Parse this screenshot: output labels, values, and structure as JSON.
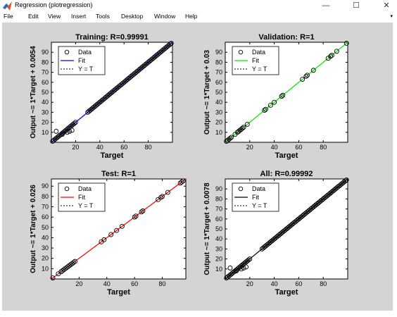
{
  "window": {
    "title": "Regression (plotregression)",
    "controls": {
      "minimize": "—",
      "maximize": "☐",
      "close": "✕"
    }
  },
  "menu": {
    "items": [
      "File",
      "Edit",
      "View",
      "Insert",
      "Tools",
      "Desktop",
      "Window",
      "Help"
    ],
    "overflow_arrow": "▾"
  },
  "chart_data": [
    {
      "type": "scatter",
      "title": "Training: R=0.99991",
      "xlabel": "Target",
      "ylabel": "Output ~= 1*Target + 0.0054",
      "xlim": [
        0,
        100
      ],
      "ylim": [
        0,
        100
      ],
      "xticks": [
        20,
        40,
        60,
        80
      ],
      "yticks": [
        10,
        20,
        30,
        40,
        50,
        60,
        70,
        80,
        90
      ],
      "fit_color": "#0000ff",
      "fit": {
        "slope": 1,
        "intercept": 0.0054
      },
      "legend": [
        "Data",
        "Fit",
        "Y = T"
      ],
      "legend_position": "top-left",
      "points": [
        [
          1,
          1
        ],
        [
          2,
          2
        ],
        [
          3,
          3
        ],
        [
          4,
          4
        ],
        [
          5,
          5
        ],
        [
          6,
          6
        ],
        [
          7,
          7
        ],
        [
          8,
          8
        ],
        [
          9,
          9
        ],
        [
          10,
          10
        ],
        [
          11,
          11
        ],
        [
          12,
          12
        ],
        [
          13,
          13
        ],
        [
          14,
          14
        ],
        [
          15,
          15
        ],
        [
          16,
          16
        ],
        [
          17,
          17
        ],
        [
          18,
          18
        ],
        [
          19,
          19
        ],
        [
          20,
          20
        ],
        [
          4,
          11
        ],
        [
          9,
          8
        ],
        [
          13,
          10
        ],
        [
          15,
          11
        ],
        [
          17,
          12
        ],
        [
          30,
          30
        ],
        [
          31,
          31
        ],
        [
          32,
          32
        ],
        [
          33,
          33
        ],
        [
          34,
          34
        ],
        [
          35,
          35
        ],
        [
          36,
          36
        ],
        [
          37,
          37
        ],
        [
          38,
          38
        ],
        [
          39,
          39
        ],
        [
          40,
          40
        ],
        [
          41,
          41
        ],
        [
          42,
          42
        ],
        [
          43,
          43
        ],
        [
          44,
          44
        ],
        [
          45,
          45
        ],
        [
          46,
          46
        ],
        [
          47,
          47
        ],
        [
          48,
          48
        ],
        [
          49,
          49
        ],
        [
          50,
          50
        ],
        [
          51,
          51
        ],
        [
          52,
          52
        ],
        [
          53,
          53
        ],
        [
          54,
          54
        ],
        [
          55,
          55
        ],
        [
          56,
          56
        ],
        [
          57,
          57
        ],
        [
          58,
          58
        ],
        [
          59,
          59
        ],
        [
          60,
          60
        ],
        [
          61,
          61
        ],
        [
          62,
          62
        ],
        [
          63,
          63
        ],
        [
          64,
          64
        ],
        [
          65,
          65
        ],
        [
          66,
          66
        ],
        [
          67,
          67
        ],
        [
          68,
          68
        ],
        [
          69,
          69
        ],
        [
          70,
          70
        ],
        [
          71,
          71
        ],
        [
          72,
          72
        ],
        [
          73,
          73
        ],
        [
          74,
          74
        ],
        [
          75,
          75
        ],
        [
          76,
          76
        ],
        [
          77,
          77
        ],
        [
          78,
          78
        ],
        [
          79,
          79
        ],
        [
          80,
          80
        ],
        [
          81,
          81
        ],
        [
          82,
          82
        ],
        [
          83,
          83
        ],
        [
          84,
          84
        ],
        [
          85,
          85
        ],
        [
          86,
          86
        ],
        [
          87,
          87
        ],
        [
          88,
          88
        ],
        [
          89,
          89
        ],
        [
          90,
          90
        ],
        [
          91,
          91
        ],
        [
          92,
          92
        ],
        [
          93,
          93
        ],
        [
          94,
          94
        ],
        [
          95,
          95
        ],
        [
          96,
          96
        ],
        [
          97,
          97
        ],
        [
          98,
          98
        ],
        [
          99,
          99
        ]
      ]
    },
    {
      "type": "scatter",
      "title": "Validation: R=1",
      "xlabel": "Target",
      "ylabel": "Output ~= 1*Target + 0.03",
      "xlim": [
        0,
        100
      ],
      "ylim": [
        0,
        100
      ],
      "xticks": [
        20,
        40,
        60,
        80
      ],
      "yticks": [
        10,
        20,
        30,
        40,
        50,
        60,
        70,
        80,
        90
      ],
      "fit_color": "#00ee00",
      "fit": {
        "slope": 1,
        "intercept": 0.03
      },
      "legend": [
        "Data",
        "Fit",
        "Y = T"
      ],
      "legend_position": "top-left",
      "points": [
        [
          1,
          1
        ],
        [
          2,
          2
        ],
        [
          3,
          3
        ],
        [
          4,
          4
        ],
        [
          5,
          5
        ],
        [
          8,
          8
        ],
        [
          10,
          10
        ],
        [
          11,
          11
        ],
        [
          12,
          12
        ],
        [
          13,
          13
        ],
        [
          14,
          14
        ],
        [
          15,
          15
        ],
        [
          18,
          18
        ],
        [
          32,
          32
        ],
        [
          33,
          33
        ],
        [
          37,
          37
        ],
        [
          40,
          40
        ],
        [
          46,
          46
        ],
        [
          47,
          47
        ],
        [
          63,
          63
        ],
        [
          66,
          66
        ],
        [
          67,
          67
        ],
        [
          72,
          72
        ],
        [
          84,
          84
        ],
        [
          86,
          86
        ],
        [
          87,
          87
        ],
        [
          91,
          91
        ],
        [
          99,
          99
        ]
      ]
    },
    {
      "type": "scatter",
      "title": "Test: R=1",
      "xlabel": "Target",
      "ylabel": "Output ~= 1*Target + 0.026",
      "xlim": [
        0,
        97
      ],
      "ylim": [
        0,
        97
      ],
      "xticks": [
        20,
        40,
        60,
        80
      ],
      "yticks": [
        10,
        20,
        30,
        40,
        50,
        60,
        70,
        80,
        90
      ],
      "fit_color": "#ff0000",
      "fit": {
        "slope": 1,
        "intercept": 0.026
      },
      "legend": [
        "Data",
        "Fit",
        "Y = T"
      ],
      "legend_position": "top-left",
      "points": [
        [
          1,
          1
        ],
        [
          5,
          5
        ],
        [
          7,
          7
        ],
        [
          8,
          8
        ],
        [
          9,
          9
        ],
        [
          10,
          10
        ],
        [
          11,
          11
        ],
        [
          12,
          12
        ],
        [
          13,
          13
        ],
        [
          14,
          14
        ],
        [
          15,
          15
        ],
        [
          16,
          16
        ],
        [
          17,
          17
        ],
        [
          36,
          36
        ],
        [
          38,
          38
        ],
        [
          43,
          43
        ],
        [
          47,
          47
        ],
        [
          51,
          51
        ],
        [
          60,
          60
        ],
        [
          61,
          61
        ],
        [
          65,
          65
        ],
        [
          66,
          66
        ],
        [
          77,
          77
        ],
        [
          79,
          79
        ],
        [
          80,
          80
        ],
        [
          84,
          84
        ],
        [
          93,
          93
        ],
        [
          94,
          94
        ],
        [
          95,
          95
        ]
      ]
    },
    {
      "type": "scatter",
      "title": "All: R=0.99992",
      "xlabel": "Target",
      "ylabel": "Output ~= 1*Target + 0.0078",
      "xlim": [
        0,
        100
      ],
      "ylim": [
        0,
        100
      ],
      "xticks": [
        20,
        40,
        60,
        80
      ],
      "yticks": [
        10,
        20,
        30,
        40,
        50,
        60,
        70,
        80,
        90
      ],
      "fit_color": "#000000",
      "fit": {
        "slope": 1,
        "intercept": 0.0078
      },
      "legend": [
        "Data",
        "Fit",
        "Y = T"
      ],
      "legend_position": "top-left",
      "points": [
        [
          1,
          1
        ],
        [
          2,
          2
        ],
        [
          3,
          3
        ],
        [
          4,
          4
        ],
        [
          5,
          5
        ],
        [
          6,
          6
        ],
        [
          7,
          7
        ],
        [
          8,
          8
        ],
        [
          9,
          9
        ],
        [
          10,
          10
        ],
        [
          11,
          11
        ],
        [
          12,
          12
        ],
        [
          13,
          13
        ],
        [
          14,
          14
        ],
        [
          15,
          15
        ],
        [
          16,
          16
        ],
        [
          17,
          17
        ],
        [
          18,
          18
        ],
        [
          19,
          19
        ],
        [
          20,
          20
        ],
        [
          4,
          11
        ],
        [
          9,
          8
        ],
        [
          13,
          10
        ],
        [
          15,
          11
        ],
        [
          17,
          12
        ],
        [
          30,
          30
        ],
        [
          31,
          31
        ],
        [
          32,
          32
        ],
        [
          33,
          33
        ],
        [
          34,
          34
        ],
        [
          35,
          35
        ],
        [
          36,
          36
        ],
        [
          37,
          37
        ],
        [
          38,
          38
        ],
        [
          39,
          39
        ],
        [
          40,
          40
        ],
        [
          41,
          41
        ],
        [
          42,
          42
        ],
        [
          43,
          43
        ],
        [
          44,
          44
        ],
        [
          45,
          45
        ],
        [
          46,
          46
        ],
        [
          47,
          47
        ],
        [
          48,
          48
        ],
        [
          49,
          49
        ],
        [
          50,
          50
        ],
        [
          51,
          51
        ],
        [
          52,
          52
        ],
        [
          53,
          53
        ],
        [
          54,
          54
        ],
        [
          55,
          55
        ],
        [
          56,
          56
        ],
        [
          57,
          57
        ],
        [
          58,
          58
        ],
        [
          59,
          59
        ],
        [
          60,
          60
        ],
        [
          61,
          61
        ],
        [
          62,
          62
        ],
        [
          63,
          63
        ],
        [
          64,
          64
        ],
        [
          65,
          65
        ],
        [
          66,
          66
        ],
        [
          67,
          67
        ],
        [
          68,
          68
        ],
        [
          69,
          69
        ],
        [
          70,
          70
        ],
        [
          71,
          71
        ],
        [
          72,
          72
        ],
        [
          73,
          73
        ],
        [
          74,
          74
        ],
        [
          75,
          75
        ],
        [
          76,
          76
        ],
        [
          77,
          77
        ],
        [
          78,
          78
        ],
        [
          79,
          79
        ],
        [
          80,
          80
        ],
        [
          81,
          81
        ],
        [
          82,
          82
        ],
        [
          83,
          83
        ],
        [
          84,
          84
        ],
        [
          85,
          85
        ],
        [
          86,
          86
        ],
        [
          87,
          87
        ],
        [
          88,
          88
        ],
        [
          89,
          89
        ],
        [
          90,
          90
        ],
        [
          91,
          91
        ],
        [
          92,
          92
        ],
        [
          93,
          93
        ],
        [
          94,
          94
        ],
        [
          95,
          95
        ],
        [
          96,
          96
        ],
        [
          97,
          97
        ],
        [
          98,
          98
        ],
        [
          99,
          99
        ]
      ]
    }
  ]
}
